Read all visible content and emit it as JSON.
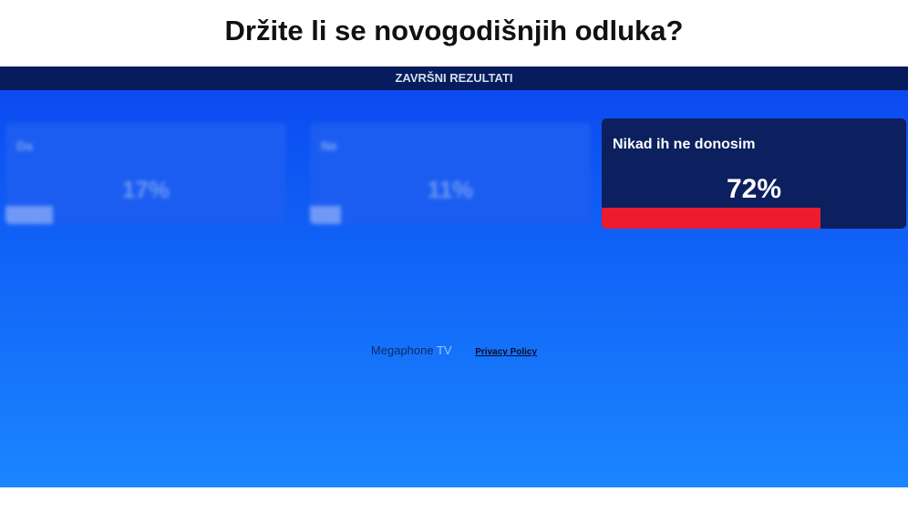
{
  "poll": {
    "title": "Držite li se novogodišnjih odluka?",
    "results_header": "ZAVRŠNI REZULTATI",
    "options": [
      {
        "label": "Da",
        "percent_text": "17%",
        "percent": 17
      },
      {
        "label": "Ne",
        "percent_text": "11%",
        "percent": 11
      },
      {
        "label": "Nikad ih ne donosim",
        "percent_text": "72%",
        "percent": 72
      }
    ],
    "selected_index": 2,
    "colors": {
      "header_bg": "#071c5c",
      "selected_bg": "#0c1f5e",
      "selected_bar": "#ec1b2e",
      "gradient_top": "#0a47f0",
      "gradient_bottom": "#1a86ff"
    }
  },
  "footer": {
    "brand": "Megaphone",
    "brand_suffix": "TV",
    "privacy_label": "Privacy Policy"
  }
}
